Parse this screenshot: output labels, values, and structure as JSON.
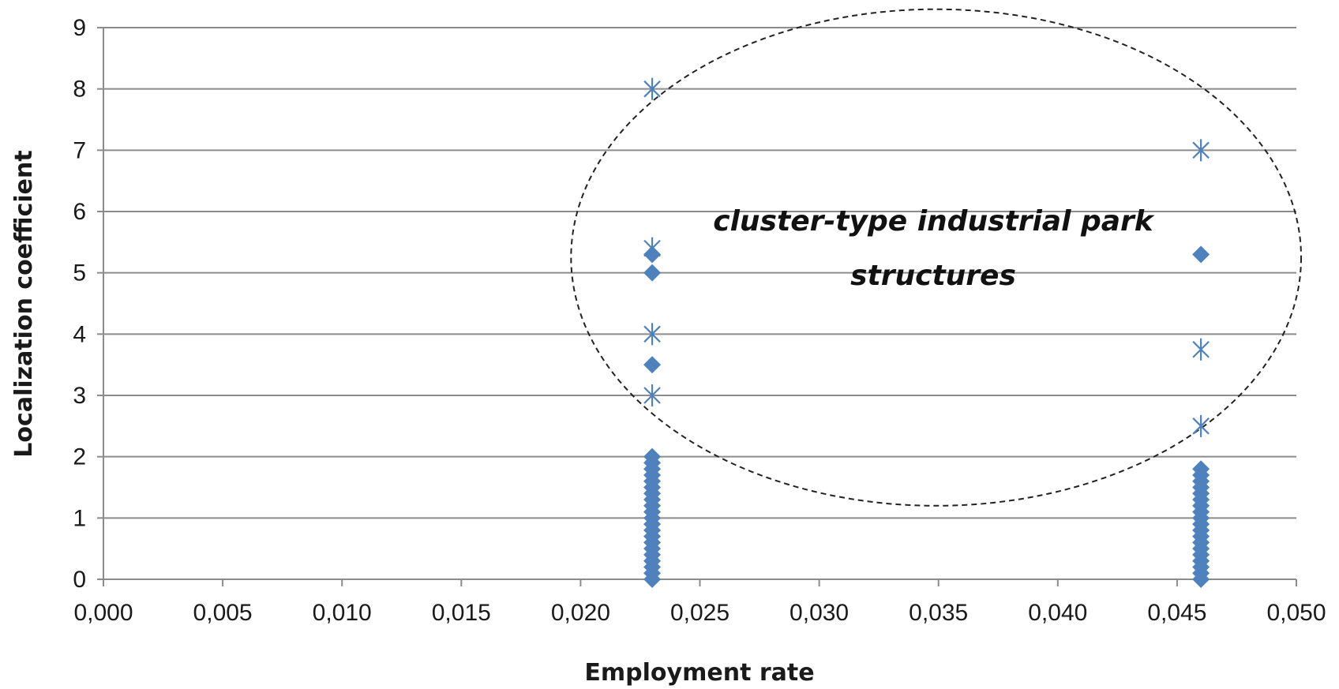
{
  "chart_data": {
    "type": "scatter",
    "title": "",
    "xlabel": "Employment rate",
    "ylabel": "Localization coefficient",
    "xlim": [
      0.0,
      0.05
    ],
    "ylim": [
      0,
      9
    ],
    "x_ticks": [
      "0,000",
      "0,005",
      "0,010",
      "0,015",
      "0,020",
      "0,025",
      "0,030",
      "0,035",
      "0,040",
      "0,045",
      "0,050"
    ],
    "y_ticks": [
      "0",
      "1",
      "2",
      "3",
      "4",
      "5",
      "6",
      "7",
      "8",
      "9"
    ],
    "grid": "horizontal",
    "legend": "none",
    "annotation": {
      "lines": [
        "cluster-type industrial park",
        "structures"
      ],
      "ellipse": {
        "cx": 0.0349,
        "cy": 5.25,
        "rx": 0.0153,
        "ry": 4.05
      }
    },
    "series": [
      {
        "marker": "diamond",
        "color": "#4f81bd",
        "points": [
          {
            "x": 0.023,
            "y": 0.0
          },
          {
            "x": 0.023,
            "y": 0.1
          },
          {
            "x": 0.023,
            "y": 0.2
          },
          {
            "x": 0.023,
            "y": 0.3
          },
          {
            "x": 0.023,
            "y": 0.4
          },
          {
            "x": 0.023,
            "y": 0.5
          },
          {
            "x": 0.023,
            "y": 0.6
          },
          {
            "x": 0.023,
            "y": 0.7
          },
          {
            "x": 0.023,
            "y": 0.8
          },
          {
            "x": 0.023,
            "y": 0.9
          },
          {
            "x": 0.023,
            "y": 1.0
          },
          {
            "x": 0.023,
            "y": 1.1
          },
          {
            "x": 0.023,
            "y": 1.2
          },
          {
            "x": 0.023,
            "y": 1.3
          },
          {
            "x": 0.023,
            "y": 1.4
          },
          {
            "x": 0.023,
            "y": 1.5
          },
          {
            "x": 0.023,
            "y": 1.6
          },
          {
            "x": 0.023,
            "y": 1.7
          },
          {
            "x": 0.023,
            "y": 1.8
          },
          {
            "x": 0.023,
            "y": 1.9
          },
          {
            "x": 0.023,
            "y": 2.0
          },
          {
            "x": 0.023,
            "y": 3.5
          },
          {
            "x": 0.023,
            "y": 5.0
          },
          {
            "x": 0.023,
            "y": 5.3
          },
          {
            "x": 0.046,
            "y": 0.0
          },
          {
            "x": 0.046,
            "y": 0.1
          },
          {
            "x": 0.046,
            "y": 0.2
          },
          {
            "x": 0.046,
            "y": 0.3
          },
          {
            "x": 0.046,
            "y": 0.4
          },
          {
            "x": 0.046,
            "y": 0.5
          },
          {
            "x": 0.046,
            "y": 0.6
          },
          {
            "x": 0.046,
            "y": 0.7
          },
          {
            "x": 0.046,
            "y": 0.8
          },
          {
            "x": 0.046,
            "y": 0.9
          },
          {
            "x": 0.046,
            "y": 1.0
          },
          {
            "x": 0.046,
            "y": 1.1
          },
          {
            "x": 0.046,
            "y": 1.2
          },
          {
            "x": 0.046,
            "y": 1.3
          },
          {
            "x": 0.046,
            "y": 1.4
          },
          {
            "x": 0.046,
            "y": 1.5
          },
          {
            "x": 0.046,
            "y": 1.6
          },
          {
            "x": 0.046,
            "y": 1.7
          },
          {
            "x": 0.046,
            "y": 1.8
          },
          {
            "x": 0.046,
            "y": 5.3
          }
        ]
      },
      {
        "marker": "asterisk",
        "color": "#4f81bd",
        "points": [
          {
            "x": 0.023,
            "y": 8.0
          },
          {
            "x": 0.023,
            "y": 5.4
          },
          {
            "x": 0.023,
            "y": 4.0
          },
          {
            "x": 0.023,
            "y": 3.0
          },
          {
            "x": 0.046,
            "y": 7.0
          },
          {
            "x": 0.046,
            "y": 3.75
          },
          {
            "x": 0.046,
            "y": 2.5
          }
        ]
      }
    ]
  }
}
